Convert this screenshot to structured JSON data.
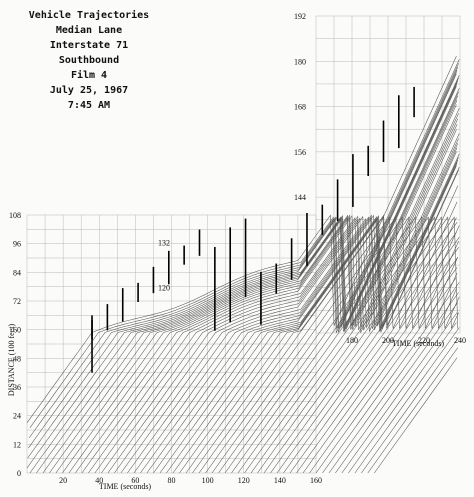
{
  "chart_data": {
    "type": "line",
    "title_lines": [
      "Vehicle Trajectories",
      "Median Lane",
      "Interstate 71",
      "Southbound",
      "Film 4",
      "July 25, 1967",
      "7:45 AM"
    ],
    "panels": [
      {
        "name": "lower",
        "xlabel": "TIME (seconds)",
        "ylabel": "DISTANCE (100 feet)",
        "xlim": [
          0,
          160
        ],
        "ylim": [
          0,
          108
        ],
        "x_ticks": [
          "20",
          "40",
          "60",
          "80",
          "100",
          "120",
          "140",
          "160"
        ],
        "y_ticks": [
          "0",
          "12",
          "24",
          "36",
          "48",
          "60",
          "72",
          "84",
          "96",
          "108"
        ]
      },
      {
        "name": "upper",
        "xlabel": "TIME (seconds)",
        "xlim": [
          160,
          240
        ],
        "ylim": [
          108,
          192
        ],
        "x_ticks": [
          "180",
          "200",
          "220",
          "240"
        ],
        "y_ticks": [
          "120",
          "132",
          "144",
          "156",
          "168",
          "180",
          "192"
        ]
      }
    ],
    "grid": true,
    "description_of_marks": "many vehicle trajectory curves rising left to right; dense queue band with near-horizontal slope between t=40 and t=140 around distance 72; vertical bars mark shock positions"
  }
}
